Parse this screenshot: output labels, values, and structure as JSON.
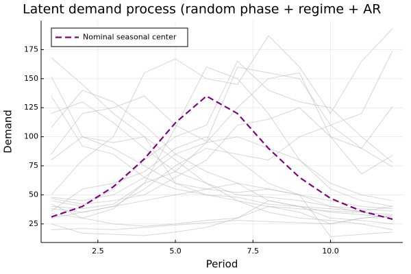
{
  "chart_data": {
    "type": "line",
    "title": "Latent demand process (random phase + regime + AR",
    "x_label": "Period",
    "y_label": "Demand",
    "x": [
      1,
      2,
      3,
      4,
      5,
      6,
      7,
      8,
      9,
      10,
      11,
      12
    ],
    "xlim": [
      0.67,
      12.33
    ],
    "xticks": [
      2.5,
      {
        "value": 5,
        "label": "5.0"
      },
      7.5,
      {
        "value": 10,
        "label": "10.0"
      }
    ],
    "ylim": [
      9,
      200
    ],
    "yticks": [
      25,
      50,
      75,
      100,
      125,
      150,
      175
    ],
    "grid": true,
    "legend": "top-left",
    "series": [
      {
        "color": "#bbbbbb",
        "values": [
          168,
          145,
          120,
          100,
          80,
          60,
          45,
          35,
          30,
          28,
          25,
          20
        ]
      },
      {
        "color": "#bbbbbb",
        "values": [
          152,
          100,
          90,
          75,
          60,
          50,
          45,
          40,
          38,
          36,
          35,
          33
        ]
      },
      {
        "color": "#bbbbbb",
        "values": [
          135,
          92,
          85,
          65,
          55,
          50,
          48,
          42,
          40,
          38,
          36,
          40
        ]
      },
      {
        "color": "#bbbbbb",
        "values": [
          120,
          130,
          112,
          90,
          70,
          60,
          50,
          48,
          45,
          40,
          38,
          36
        ]
      },
      {
        "color": "#bbbbbb",
        "values": [
          85,
          120,
          125,
          135,
          110,
          96,
          160,
          155,
          150,
          110,
          90,
          74
        ]
      },
      {
        "color": "#bbbbbb",
        "values": [
          108,
          140,
          130,
          110,
          85,
          70,
          60,
          45,
          40,
          35,
          33,
          30
        ]
      },
      {
        "color": "#bbbbbb",
        "values": [
          50,
          80,
          100,
          155,
          167,
          150,
          145,
          187,
          160,
          120,
          165,
          193
        ]
      },
      {
        "color": "#bbbbbb",
        "values": [
          45,
          40,
          55,
          80,
          100,
          110,
          165,
          140,
          130,
          125,
          100,
          78
        ]
      },
      {
        "color": "#bbbbbb",
        "values": [
          40,
          38,
          42,
          60,
          70,
          95,
          125,
          150,
          155,
          100,
          68,
          84
        ]
      },
      {
        "color": "#bbbbbb",
        "values": [
          48,
          45,
          50,
          65,
          85,
          95,
          100,
          90,
          80,
          60,
          50,
          45
        ]
      },
      {
        "color": "#bbbbbb",
        "values": [
          38,
          35,
          40,
          55,
          75,
          90,
          85,
          80,
          100,
          110,
          120,
          174
        ]
      },
      {
        "color": "#bbbbbb",
        "values": [
          30,
          35,
          40,
          45,
          50,
          55,
          60,
          55,
          50,
          45,
          40,
          38
        ]
      },
      {
        "color": "#bbbbbb",
        "values": [
          25,
          17,
          16,
          15,
          18,
          22,
          30,
          45,
          40,
          30,
          28,
          25
        ]
      },
      {
        "color": "#bbbbbb",
        "values": [
          42,
          30,
          25,
          23,
          25,
          28,
          30,
          40,
          35,
          25,
          30,
          32
        ]
      },
      {
        "color": "#bbbbbb",
        "values": [
          34,
          30,
          38,
          60,
          108,
          160,
          150,
          120,
          80,
          55,
          45,
          40
        ]
      },
      {
        "color": "#bbbbbb",
        "values": [
          47,
          42,
          45,
          50,
          65,
          80,
          110,
          115,
          125,
          100,
          90,
          126
        ]
      },
      {
        "color": "#bbbbbb",
        "values": [
          20,
          21,
          20,
          22,
          24,
          26,
          28,
          27,
          26,
          25,
          30,
          32
        ]
      },
      {
        "color": "#bbbbbb",
        "values": [
          36,
          55,
          60,
          70,
          90,
          100,
          80,
          60,
          50,
          40,
          35,
          30
        ]
      },
      {
        "color": "#bbbbbb",
        "values": [
          80,
          100,
          95,
          100,
          60,
          55,
          52,
          55,
          50,
          14,
          16,
          18
        ]
      },
      {
        "name": "Nominal seasonal center",
        "color": "#800080",
        "dashed": true,
        "values": [
          31,
          40,
          57,
          81,
          112,
          135,
          120,
          90,
          65,
          47,
          36,
          29
        ]
      }
    ]
  }
}
